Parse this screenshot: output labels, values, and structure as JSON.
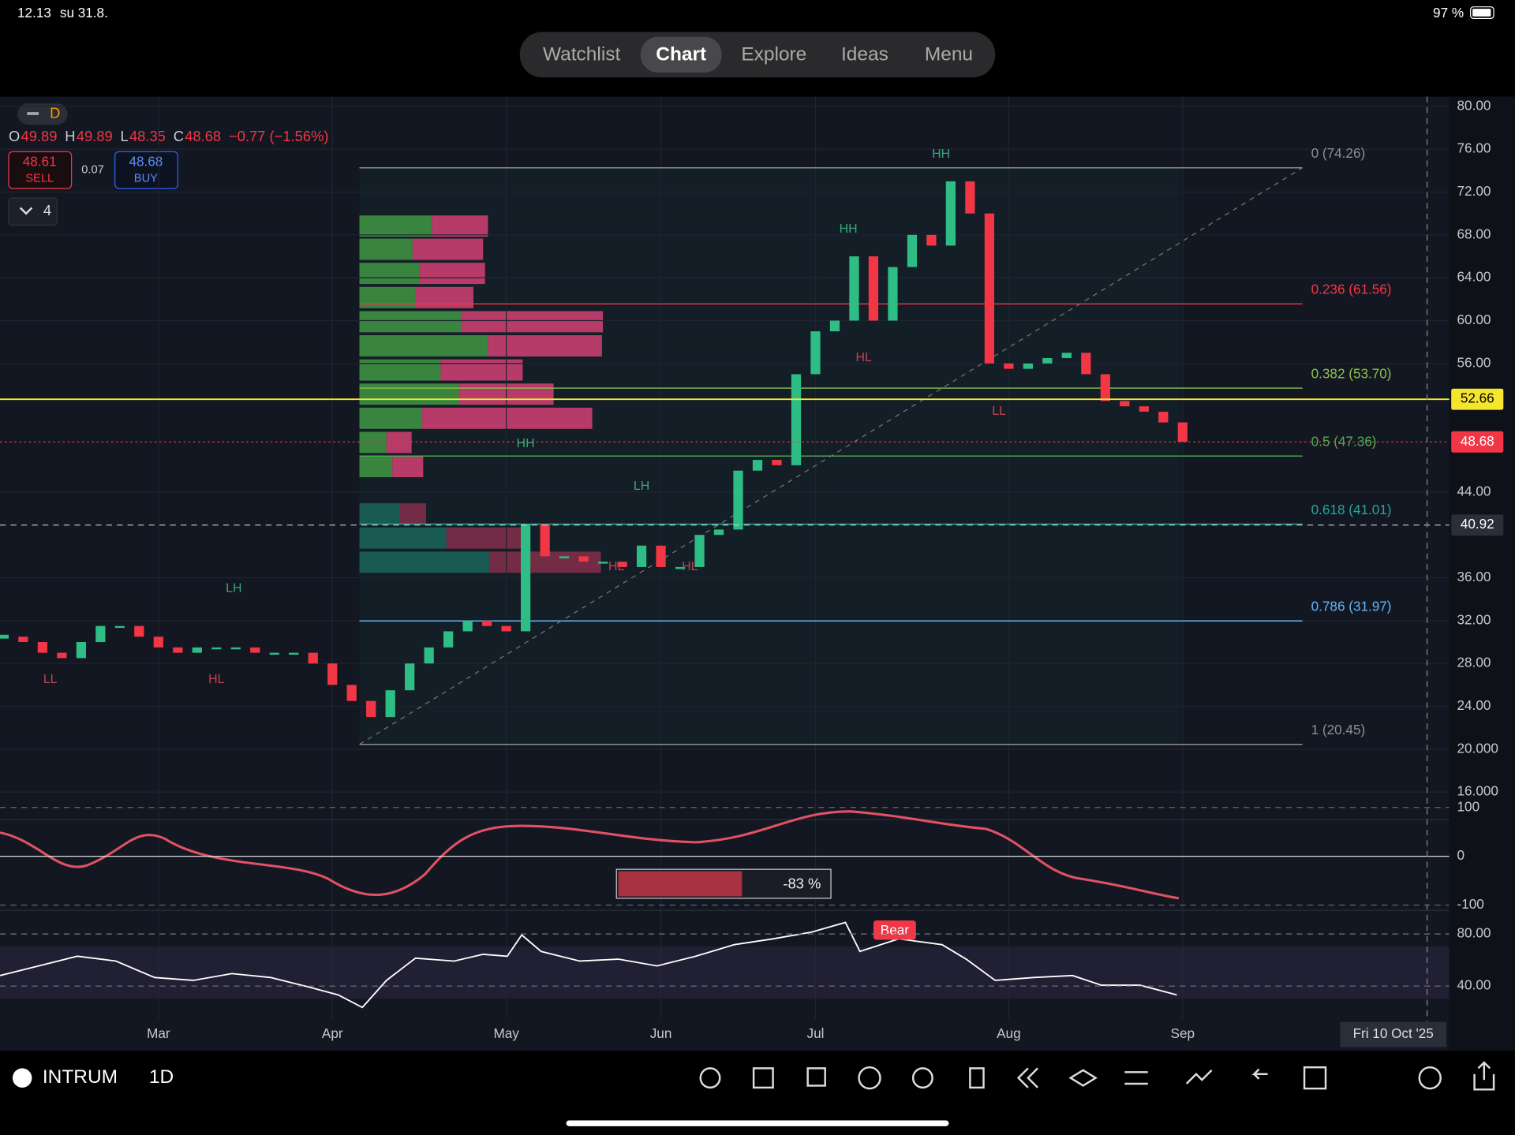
{
  "status_bar": {
    "time": "12.13",
    "date": "su 31.8.",
    "battery": "97 %"
  },
  "tabs": [
    "Watchlist",
    "Chart",
    "Explore",
    "Ideas",
    "Menu"
  ],
  "active_tab": 1,
  "header": {
    "interval": "D",
    "ohlc": [
      {
        "key": "O",
        "value": "49.89"
      },
      {
        "key": "H",
        "value": "49.89"
      },
      {
        "key": "L",
        "value": "48.35"
      },
      {
        "key": "C",
        "value": "48.68"
      }
    ],
    "change": "−0.77 (−1.56%)",
    "sell": {
      "price": "48.61",
      "label": "SELL"
    },
    "spread": "0.07",
    "buy": {
      "price": "48.68",
      "label": "BUY"
    },
    "indicators_count": "4"
  },
  "chart_data": {
    "type": "candlestick",
    "categories": [
      null,
      null,
      null,
      null,
      null,
      null,
      null,
      null,
      "Mar",
      null,
      null,
      null,
      null,
      null,
      null,
      null,
      null,
      "Apr",
      null,
      null,
      null,
      null,
      null,
      null,
      null,
      null,
      "May",
      null,
      null,
      null,
      null,
      null,
      null,
      null,
      "Jun",
      null,
      null,
      null,
      null,
      null,
      null,
      null,
      "Jul",
      null,
      null,
      null,
      null,
      null,
      null,
      null,
      null,
      null,
      "Aug",
      null,
      null,
      null,
      null,
      null,
      null,
      null,
      null,
      "Sep"
    ],
    "values": [
      30.5,
      30,
      29,
      28.5,
      30,
      31.5,
      31.5,
      30.5,
      29.5,
      29,
      29.5,
      29.5,
      29.5,
      29,
      29,
      29,
      28,
      26,
      24.5,
      23,
      25.5,
      28,
      29.5,
      31,
      32,
      31.5,
      31,
      41,
      38,
      38,
      37.5,
      37.5,
      37,
      39,
      37,
      37,
      40,
      40.5,
      46,
      47,
      46.5,
      55,
      59,
      60,
      66,
      60,
      65,
      68,
      67,
      73,
      70,
      56,
      55.5,
      56,
      56.5,
      57,
      55,
      52.5,
      52,
      51.5,
      50.5,
      48.68
    ],
    "up_color": "#2ebd85",
    "down_color": "#f23645",
    "ylim": [
      16,
      80
    ],
    "yticks": [
      {
        "value": 80,
        "label": "80.00"
      },
      {
        "value": 76,
        "label": "76.00"
      },
      {
        "value": 72,
        "label": "72.00"
      },
      {
        "value": 68,
        "label": "68.00"
      },
      {
        "value": 64,
        "label": "64.00"
      },
      {
        "value": 60,
        "label": "60.00"
      },
      {
        "value": 56,
        "label": "56.00"
      },
      {
        "value": 44,
        "label": "44.00"
      },
      {
        "value": 36,
        "label": "36.00"
      },
      {
        "value": 32,
        "label": "32.00"
      },
      {
        "value": 28,
        "label": "28.00"
      },
      {
        "value": 24,
        "label": "24.00"
      },
      {
        "value": 20,
        "label": "20.000"
      },
      {
        "value": 16,
        "label": "16.000"
      }
    ],
    "grid": true,
    "fib_levels": [
      {
        "label": "0 (74.26)",
        "value": 74.26,
        "color": "#8a8f98"
      },
      {
        "label": "0.236 (61.56)",
        "value": 61.56,
        "color": "#f23645"
      },
      {
        "label": "0.382 (53.70)",
        "value": 53.7,
        "color": "#8bc34a"
      },
      {
        "label": "0.5 (47.36)",
        "value": 47.36,
        "color": "#4caf50"
      },
      {
        "label": "0.618 (41.01)",
        "value": 41.01,
        "color": "#26a69a"
      },
      {
        "label": "0.786 (31.97)",
        "value": 31.97,
        "color": "#64b5f6"
      },
      {
        "label": "1 (20.45)",
        "value": 20.45,
        "color": "#8a8f98"
      }
    ],
    "price_lines": [
      {
        "value": 52.66,
        "color": "#f5e52c"
      },
      {
        "value": 48.68,
        "color": "#f23645"
      },
      {
        "value": 40.92,
        "color": "#d0d0d0"
      }
    ],
    "annotations": [
      {
        "text": "HH",
        "x": 48.5,
        "y": 75.5
      },
      {
        "text": "HH",
        "x": 43.7,
        "y": 68.5
      },
      {
        "text": "HL",
        "x": 44.5,
        "y": 56.5
      },
      {
        "text": "LL",
        "x": 51.5,
        "y": 51.5
      },
      {
        "text": "HH",
        "x": 27,
        "y": 48.5
      },
      {
        "text": "LH",
        "x": 33,
        "y": 44.5
      },
      {
        "text": "HL",
        "x": 31.7,
        "y": 37
      },
      {
        "text": "HL",
        "x": 35.5,
        "y": 37
      },
      {
        "text": "LH",
        "x": 11.9,
        "y": 35
      },
      {
        "text": "LL",
        "x": 2.4,
        "y": 26.5
      },
      {
        "text": "HL",
        "x": 11,
        "y": 26.5
      }
    ]
  },
  "oscillator": {
    "ylim": [
      -100,
      100
    ],
    "yticks": [
      100,
      0,
      -100
    ],
    "readout": "-83 %"
  },
  "rsi": {
    "ylim": [
      11,
      100
    ],
    "yticks": [
      {
        "value": 80,
        "label": "80.00"
      },
      {
        "value": 40,
        "label": "40.00"
      }
    ],
    "signal": "Bear"
  },
  "crosshair_date": "Fri 10 Oct '25",
  "bottom_bar": {
    "symbol": "INTRUM",
    "interval": "1D"
  }
}
